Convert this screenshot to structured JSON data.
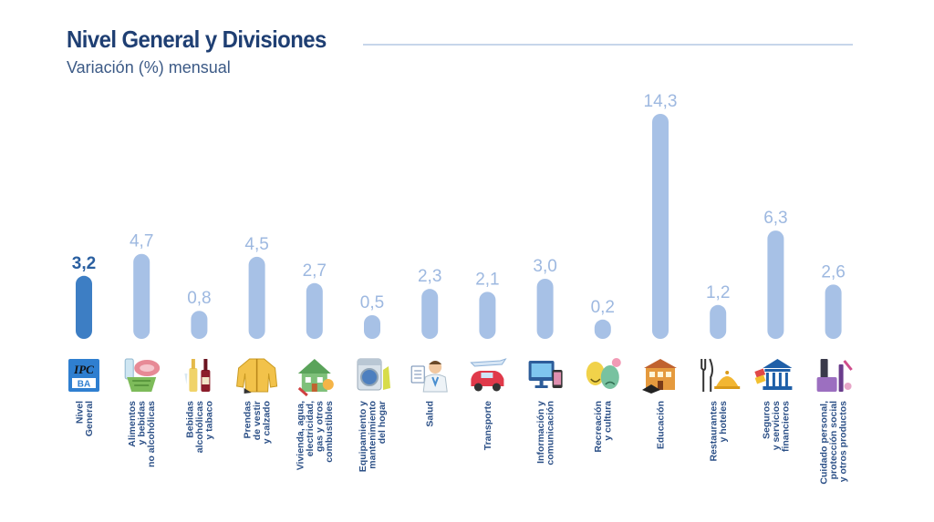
{
  "chart_data": {
    "type": "bar",
    "title": "Nivel General y Divisiones",
    "subtitle": "Variación (%) mensual",
    "xlabel": "",
    "ylabel": "",
    "grid": false,
    "legend": "none",
    "ylim": [
      0,
      14.3
    ],
    "categories": [
      [
        "Nivel",
        "General"
      ],
      [
        "Alimentos",
        "y bebidas",
        "no alcohólicas"
      ],
      [
        "Bebidas",
        "alcohólicas",
        "y tabaco"
      ],
      [
        "Prendas",
        "de vestir",
        "y calzado"
      ],
      [
        "Vivienda, agua,",
        "electricidad,",
        "gas y otros",
        "combustibles"
      ],
      [
        "Equipamiento y",
        "mantenimiento",
        "del hogar"
      ],
      [
        "Salud"
      ],
      [
        "Transporte"
      ],
      [
        "Información y",
        "comunicación"
      ],
      [
        "Recreación",
        "y cultura"
      ],
      [
        "Educación"
      ],
      [
        "Restaurantes",
        "y hoteles"
      ],
      [
        "Seguros",
        "y servicios",
        "financieros"
      ],
      [
        "Cuidado personal,",
        "protección social",
        "y otros productos"
      ]
    ],
    "values": [
      3.2,
      4.7,
      0.8,
      4.5,
      2.7,
      0.5,
      2.3,
      2.1,
      3.0,
      0.2,
      14.3,
      1.2,
      6.3,
      2.6
    ],
    "value_labels": [
      "3,2",
      "4,7",
      "0,8",
      "4,5",
      "2,7",
      "0,5",
      "2,3",
      "2,1",
      "3,0",
      "0,2",
      "14,3",
      "1,2",
      "6,3",
      "2,6"
    ],
    "highlight_index": 0,
    "colors": {
      "highlight_bar": "#3d7ec4",
      "bar": "#a7c1e6",
      "highlight_label": "#2a5fa0",
      "label": "#9db8e0"
    },
    "icons": [
      "ipc-ba-logo-icon",
      "food-basket-icon",
      "wine-bottles-icon",
      "jacket-icon",
      "house-icon",
      "washing-machine-icon",
      "doctor-icon",
      "transport-icon",
      "computer-phone-icon",
      "theater-masks-icon",
      "school-building-icon",
      "cutlery-dish-icon",
      "bank-icon",
      "personal-care-products-icon"
    ],
    "icon_logo_text": [
      "IPC",
      "BA"
    ]
  }
}
